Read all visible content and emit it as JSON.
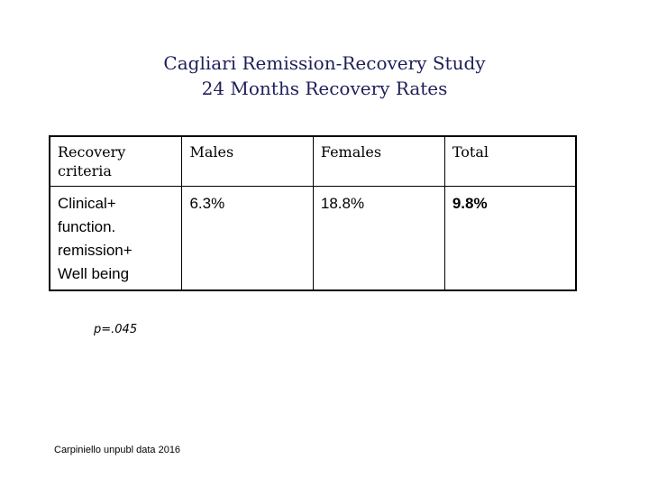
{
  "slide": {
    "title_line1": "Cagliari Remission-Recovery Study",
    "title_line2": "24 Months Recovery Rates"
  },
  "table": {
    "headers": [
      "Recovery criteria",
      "Males",
      "Females",
      "Total"
    ],
    "rows": [
      {
        "criteria_lines": [
          "Clinical+",
          "function.",
          "remission+",
          "Well being"
        ],
        "males": "6.3%",
        "females": "18.8%",
        "total": "9.8%"
      }
    ]
  },
  "footnote": {
    "p_value": "p=.045",
    "source": "Carpiniello unpubl data 2016"
  }
}
